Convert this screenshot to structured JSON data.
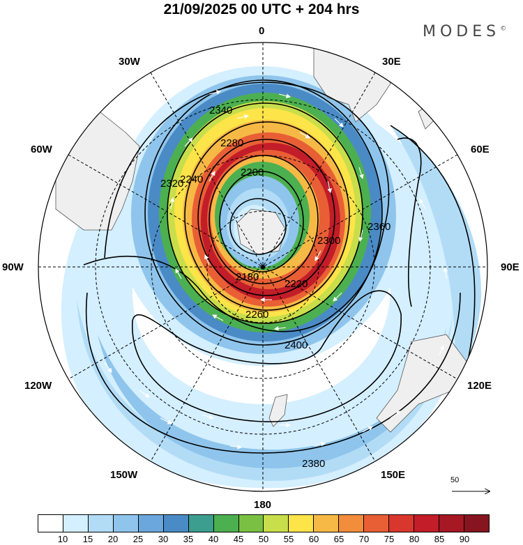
{
  "title": "21/09/2025  00 UTC  + 204 hrs",
  "brand": "MODES",
  "brand_mark": "©",
  "map": {
    "projection": "polar-stereographic-south",
    "longitude_labels": {
      "north": "0",
      "ne": "30E",
      "e_upper": "60E",
      "east": "90E",
      "e_lower": "120E",
      "se": "150E",
      "south": "180",
      "sw": "150W",
      "w_lower": "120W",
      "west": "90W",
      "w_upper": "60W",
      "nw": "30W"
    },
    "contour_labels": [
      "2180",
      "2200",
      "2220",
      "2240",
      "2260",
      "2280",
      "2300",
      "2320",
      "2340",
      "2360",
      "2380",
      "2400"
    ],
    "reference_vector": "50"
  },
  "colorbar": {
    "colors": [
      "#ffffff",
      "#d4efff",
      "#b2dcf6",
      "#8fc5ec",
      "#6ba7dc",
      "#4a8bc6",
      "#3c9e8e",
      "#4cb050",
      "#7ac143",
      "#c8de4a",
      "#fde449",
      "#f7b945",
      "#f28d3c",
      "#e95f35",
      "#d9372e",
      "#c21d28",
      "#a51824",
      "#86151f"
    ],
    "ticks": [
      "10",
      "15",
      "20",
      "25",
      "30",
      "35",
      "40",
      "45",
      "50",
      "55",
      "60",
      "65",
      "70",
      "75",
      "80",
      "85",
      "90"
    ]
  }
}
